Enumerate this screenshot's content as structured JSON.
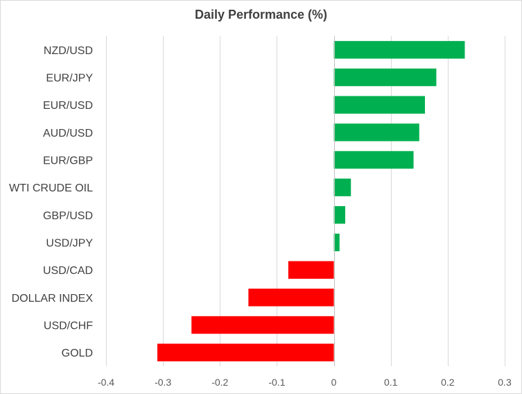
{
  "chart_data": {
    "type": "bar",
    "orientation": "horizontal",
    "title": "Daily Performance  (%)",
    "categories": [
      "NZD/USD",
      "EUR/JPY",
      "EUR/USD",
      "AUD/USD",
      "EUR/GBP",
      "WTI CRUDE OIL",
      "GBP/USD",
      "USD/JPY",
      "USD/CAD",
      "DOLLAR INDEX",
      "USD/CHF",
      "GOLD"
    ],
    "values": [
      0.23,
      0.18,
      0.16,
      0.15,
      0.14,
      0.03,
      0.02,
      0.01,
      -0.08,
      -0.15,
      -0.25,
      -0.31
    ],
    "xlim": [
      -0.4,
      0.3
    ],
    "xticks": [
      -0.4,
      -0.3,
      -0.2,
      -0.1,
      0,
      0.1,
      0.2,
      0.3
    ],
    "xtick_labels": [
      "-0.4",
      "-0.3",
      "-0.2",
      "-0.1",
      "0",
      "0.1",
      "0.2",
      "0.3"
    ],
    "grid": "vertical",
    "legend": "none",
    "colors": {
      "positive": "#00b050",
      "negative": "#ff0000",
      "grid": "#d9d9d9",
      "axis": "#bfbfbf",
      "text": "#404040"
    }
  }
}
